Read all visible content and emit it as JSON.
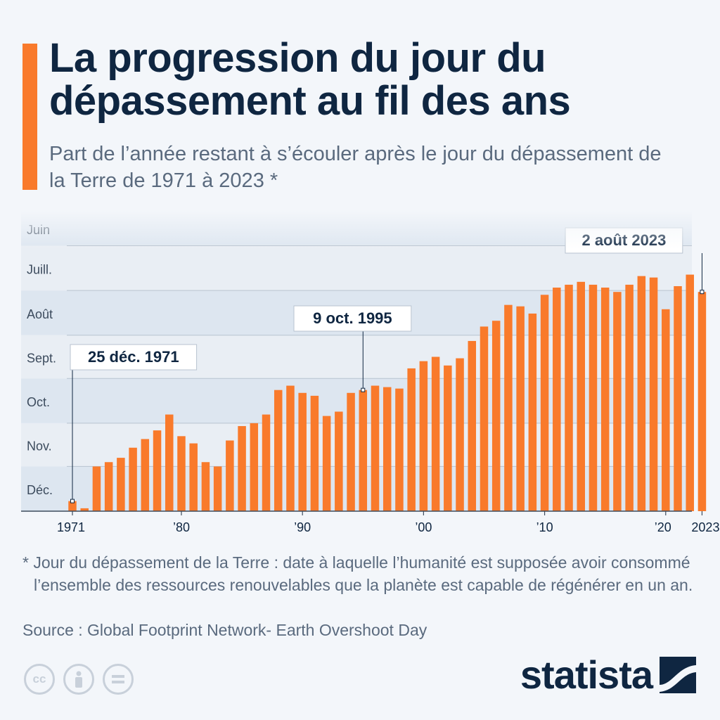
{
  "title": "La progression du jour du dépassement au fil des ans",
  "subtitle": "Part de l’année restant à s’écouler après le jour du dépassement de la Terre de 1971 à 2023 *",
  "footnote": "* Jour du dépassement de la Terre : date à laquelle l’humanité est supposée avoir consommé l’ensemble des ressources renouvelables que la planète est capable de régénérer en un an.",
  "source": "Source : Global Footprint Network- Earth Overshoot Day",
  "brand": "statista",
  "license_icons": [
    "cc-icon",
    "attribution-icon",
    "no-derivatives-icon"
  ],
  "colors": {
    "accent": "#f97a2b",
    "navy": "#0f2641",
    "text": "#5a6a7e"
  },
  "chart_data": {
    "type": "bar",
    "y_unit": "day of year of Earth Overshoot Day",
    "x": [
      1971,
      1972,
      1973,
      1974,
      1975,
      1976,
      1977,
      1978,
      1979,
      1980,
      1981,
      1982,
      1983,
      1984,
      1985,
      1986,
      1987,
      1988,
      1989,
      1990,
      1991,
      1992,
      1993,
      1994,
      1995,
      1996,
      1997,
      1998,
      1999,
      2000,
      2001,
      2002,
      2003,
      2004,
      2005,
      2006,
      2007,
      2008,
      2009,
      2010,
      2011,
      2012,
      2013,
      2014,
      2015,
      2016,
      2017,
      2018,
      2019,
      2020,
      2021,
      2022,
      2023
    ],
    "values": [
      359,
      364,
      335,
      332,
      329,
      322,
      316,
      310,
      299,
      314,
      319,
      332,
      335,
      317,
      307,
      305,
      299,
      282,
      279,
      284,
      286,
      300,
      297,
      284,
      282,
      279,
      280,
      281,
      267,
      262,
      259,
      265,
      260,
      248,
      238,
      234,
      223,
      224,
      229,
      216,
      211,
      209,
      207,
      209,
      211,
      214,
      209,
      203,
      204,
      226,
      210,
      202,
      214
    ],
    "x_tick_labels": [
      {
        "year": 1971,
        "label": "1971"
      },
      {
        "year": 1980,
        "label": "’80"
      },
      {
        "year": 1990,
        "label": "’90"
      },
      {
        "year": 2000,
        "label": "’00"
      },
      {
        "year": 2010,
        "label": "’10"
      },
      {
        "year": 2020,
        "label": "’20"
      },
      {
        "year": 2023,
        "label": "2023"
      }
    ],
    "y_axis_inverted": true,
    "y_bands": [
      {
        "label": "Juin",
        "from": 152,
        "to": 182
      },
      {
        "label": "Juill.",
        "from": 182,
        "to": 213
      },
      {
        "label": "Août",
        "from": 213,
        "to": 244
      },
      {
        "label": "Sept.",
        "from": 244,
        "to": 274
      },
      {
        "label": "Oct.",
        "from": 274,
        "to": 305
      },
      {
        "label": "Nov.",
        "from": 305,
        "to": 335
      },
      {
        "label": "Déc.",
        "from": 335,
        "to": 366
      }
    ],
    "annotations": [
      {
        "year": 1971,
        "label": "25 déc. 1971"
      },
      {
        "year": 1995,
        "label": "9 oct. 1995"
      },
      {
        "year": 2023,
        "label": "2 août 2023"
      }
    ]
  }
}
